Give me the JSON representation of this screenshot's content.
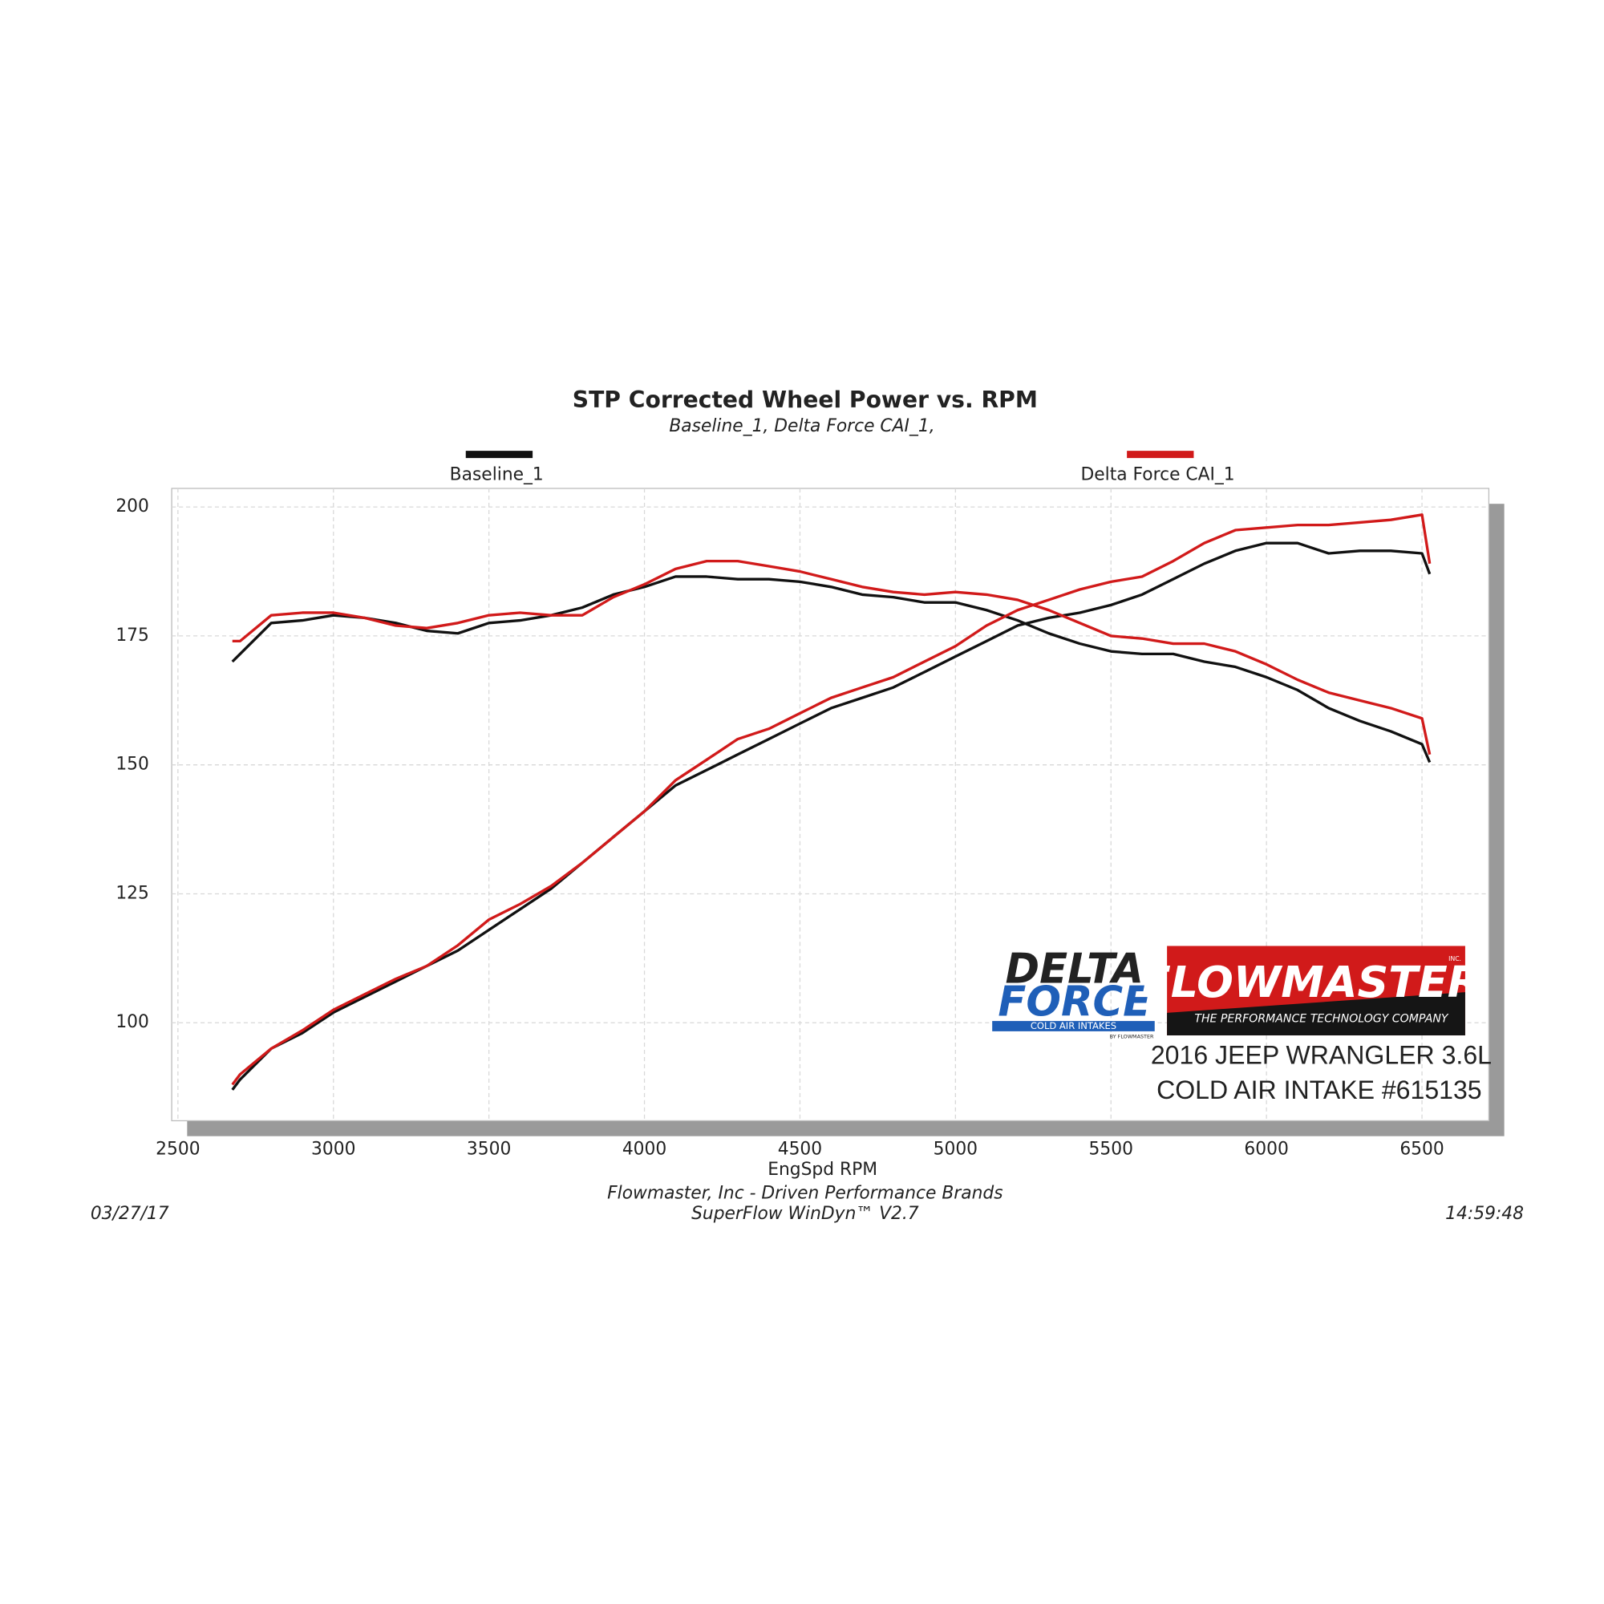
{
  "chart_data": {
    "type": "line",
    "title": "STP Corrected Wheel Power vs. RPM",
    "subtitle": "Baseline_1, Delta Force CAI_1,",
    "xlabel": "EngSpd  RPM",
    "footer": [
      "Flowmaster, Inc - Driven Performance Brands",
      "SuperFlow WinDyn™ V2.7"
    ],
    "date": "03/27/17",
    "time": "14:59:48",
    "logos": {
      "delta": [
        "DELTA",
        "FORCE"
      ],
      "delta_tag": "COLD AIR INTAKES",
      "delta_by": "BY FLOWMASTER",
      "flowmaster": "FLOWMASTER",
      "flowmaster_inc": "INC.",
      "flowmaster_tag": "THE PERFORMANCE TECHNOLOGY COMPANY"
    },
    "caption": [
      "2016 JEEP WRANGLER 3.6L",
      "COLD AIR INTAKE #615135"
    ],
    "xlim": [
      2480,
      6715
    ],
    "ylim": [
      81,
      203.6
    ],
    "xticks": [
      2500,
      3000,
      3500,
      4000,
      4500,
      5000,
      5500,
      6000,
      6500
    ],
    "yticks": [
      100,
      125,
      150,
      175,
      200
    ],
    "grid": true,
    "x": [
      2675,
      2700,
      2800,
      2900,
      3000,
      3100,
      3200,
      3300,
      3400,
      3500,
      3600,
      3700,
      3800,
      3900,
      4000,
      4100,
      4200,
      4300,
      4400,
      4500,
      4600,
      4700,
      4800,
      4900,
      5000,
      5100,
      5200,
      5300,
      5400,
      5500,
      5600,
      5700,
      5800,
      5900,
      6000,
      6100,
      6200,
      6300,
      6400,
      6500,
      6525
    ],
    "series": [
      {
        "name": "Baseline_1",
        "color": "#111111",
        "curves": [
          [
            87,
            89,
            95,
            98,
            102,
            105,
            108,
            111,
            114,
            118,
            122,
            126,
            131,
            136,
            141,
            146,
            149,
            152,
            155,
            158,
            161,
            163,
            165,
            168,
            171,
            174,
            177,
            178.5,
            179.5,
            181,
            183,
            186,
            189,
            191.5,
            193,
            193,
            191,
            191.5,
            191.5,
            191,
            187
          ],
          [
            170,
            171.5,
            177.5,
            178,
            179,
            178.5,
            177.5,
            176,
            175.5,
            177.5,
            178,
            179,
            180.5,
            183,
            184.5,
            186.5,
            186.5,
            186,
            186,
            185.5,
            184.5,
            183,
            182.5,
            181.5,
            181.5,
            180,
            178,
            175.5,
            173.5,
            172,
            171.5,
            171.5,
            170,
            169,
            167,
            164.5,
            161,
            158.5,
            156.5,
            154,
            150.5
          ]
        ]
      },
      {
        "name": "Delta Force CAI_1",
        "color": "#d11a1a",
        "curves": [
          [
            88,
            90,
            95,
            98.5,
            102.5,
            105.5,
            108.5,
            111,
            115,
            120,
            123,
            126.5,
            131,
            136,
            141,
            147,
            151,
            155,
            157,
            160,
            163,
            165,
            167,
            170,
            173,
            177,
            180,
            182,
            184,
            185.5,
            186.5,
            189.5,
            193,
            195.5,
            196,
            196.5,
            196.5,
            197,
            197.5,
            198.5,
            189
          ],
          [
            174,
            174,
            179,
            179.5,
            179.5,
            178.5,
            177,
            176.5,
            177.5,
            179,
            179.5,
            179,
            179,
            182.5,
            185,
            188,
            189.5,
            189.5,
            188.5,
            187.5,
            186,
            184.5,
            183.5,
            183,
            183.5,
            183,
            182,
            180,
            177.5,
            175,
            174.5,
            173.5,
            173.5,
            172,
            169.5,
            166.5,
            164,
            162.5,
            161,
            159,
            152
          ]
        ]
      }
    ]
  }
}
